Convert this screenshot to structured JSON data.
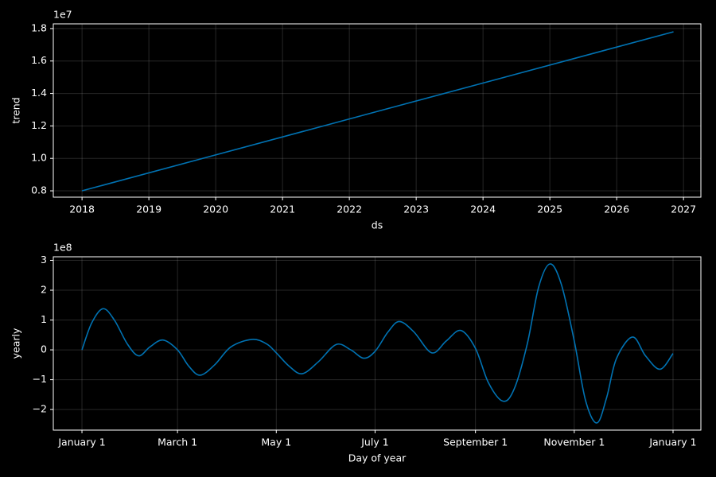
{
  "chart_data": [
    {
      "type": "line",
      "offset_label": "1e7",
      "xlabel": "ds",
      "ylabel": "trend",
      "x": [
        2018,
        2026.85
      ],
      "xlim": [
        2017.57,
        2027.26
      ],
      "xticks": [
        2018,
        2019,
        2020,
        2021,
        2022,
        2023,
        2024,
        2025,
        2026,
        2027
      ],
      "ylim": [
        0.761,
        1.829
      ],
      "yticks": [
        0.8,
        {
          "value": 1,
          "label": "1.0"
        },
        1.2,
        1.4,
        1.6,
        1.8
      ],
      "grid": true,
      "series": [
        {
          "color": "#0072b2",
          "values": [
            0.8,
            1.78
          ]
        }
      ]
    },
    {
      "type": "line",
      "offset_label": "1e8",
      "xlabel": "Day of year",
      "ylabel": "yearly",
      "x": [
        0,
        6,
        13,
        20,
        28,
        35,
        42,
        50,
        59,
        66,
        73,
        82,
        92,
        105,
        114,
        120,
        128,
        136,
        146,
        157,
        166,
        174,
        181,
        189,
        196,
        205,
        216,
        225,
        234,
        243,
        251,
        260,
        267,
        275,
        282,
        289,
        296,
        304,
        311,
        318,
        324,
        330,
        340,
        348,
        357,
        365
      ],
      "xlim": [
        -17.7,
        382.2
      ],
      "xticks": [
        {
          "value": 0,
          "label": "January 1"
        },
        {
          "value": 59,
          "label": "March 1"
        },
        {
          "value": 120,
          "label": "May 1"
        },
        {
          "value": 181,
          "label": "July 1"
        },
        {
          "value": 243,
          "label": "September 1"
        },
        {
          "value": 304,
          "label": "November 1"
        },
        {
          "value": 365,
          "label": "January 1"
        }
      ],
      "ylim": [
        -2.69,
        3.12
      ],
      "yticks": [
        {
          "value": -2,
          "label": "−2"
        },
        {
          "value": -1,
          "label": "−1"
        },
        0,
        1,
        2,
        3
      ],
      "grid": true,
      "series": [
        {
          "color": "#0072b2",
          "values": [
            0,
            0.9,
            1.38,
            1.0,
            0.2,
            -0.2,
            0.1,
            0.33,
            0.0,
            -0.55,
            -0.85,
            -0.5,
            0.1,
            0.35,
            0.2,
            -0.1,
            -0.55,
            -0.8,
            -0.4,
            0.18,
            0.0,
            -0.28,
            -0.05,
            0.6,
            0.95,
            0.6,
            -0.1,
            0.3,
            0.65,
            0.05,
            -1.1,
            -1.72,
            -1.3,
            0.2,
            2.1,
            2.88,
            2.2,
            0.3,
            -1.7,
            -2.45,
            -1.6,
            -0.3,
            0.43,
            -0.2,
            -0.65,
            -0.12
          ]
        }
      ]
    }
  ]
}
